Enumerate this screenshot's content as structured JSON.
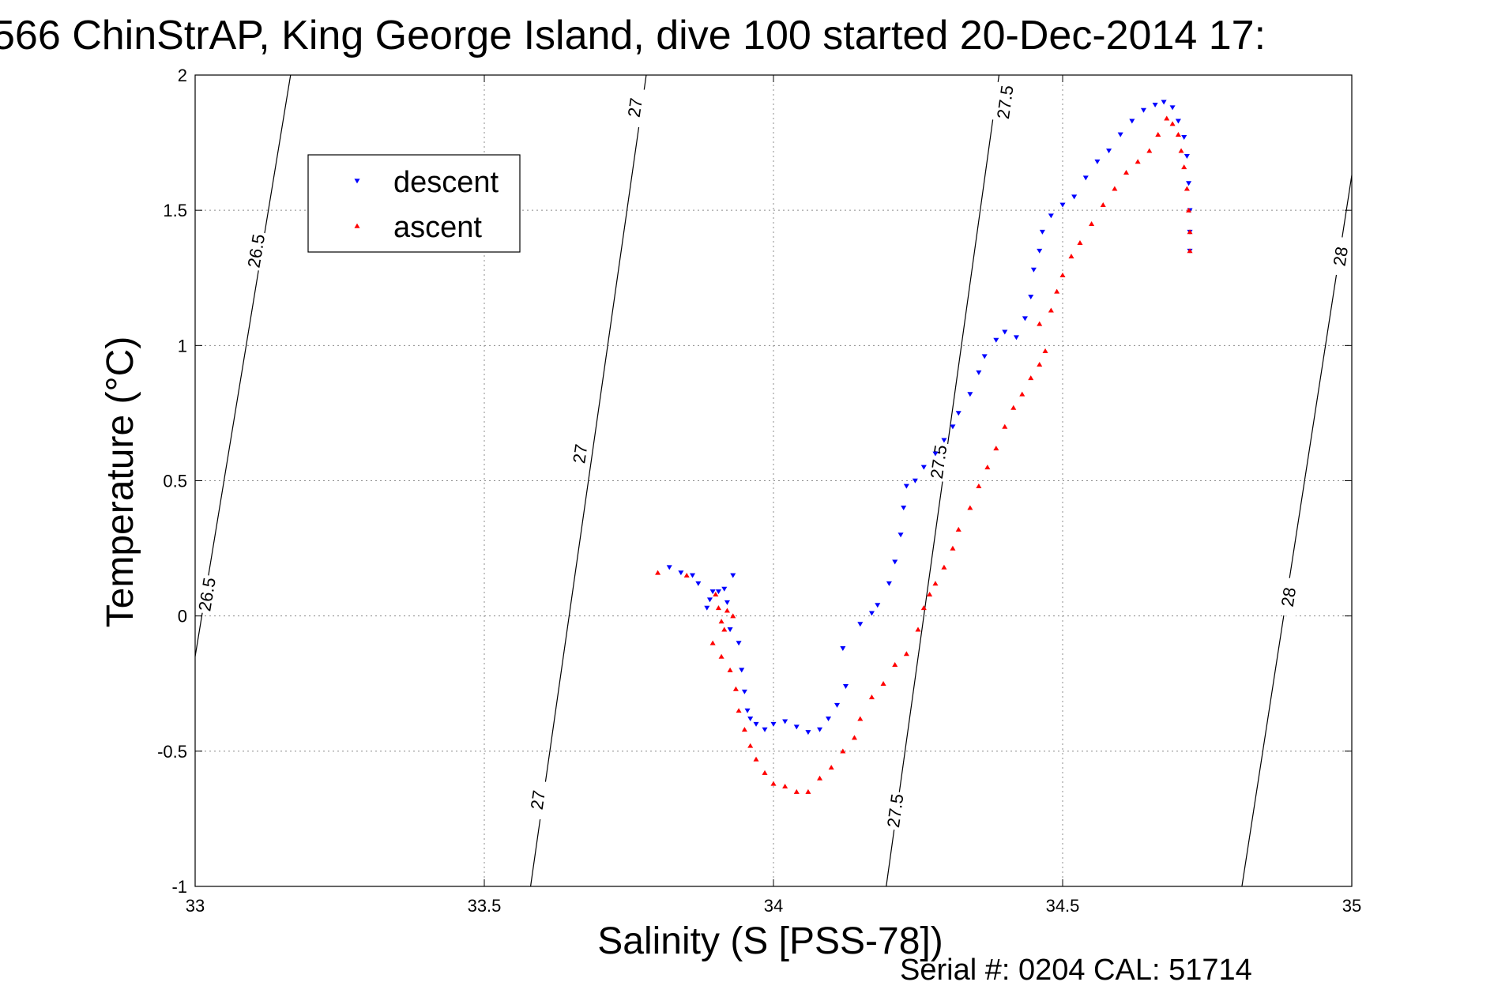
{
  "chart_data": {
    "type": "scatter",
    "title": "566 ChinStrAP, King George Island, dive 100 started 20-Dec-2014 17:",
    "xlabel": "Salinity (S [PSS-78])",
    "ylabel": "Temperature (°C)",
    "xlim": [
      33,
      35
    ],
    "ylim": [
      -1,
      2
    ],
    "xticks": [
      "33",
      "33.5",
      "34",
      "34.5",
      "35"
    ],
    "yticks": [
      "-1",
      "-0.5",
      "0",
      "0.5",
      "1",
      "1.5",
      "2"
    ],
    "grid": true,
    "legend_position": "top-left",
    "series": [
      {
        "name": "descent",
        "color": "#0000ff",
        "marker": "triangle-down",
        "points": [
          [
            33.82,
            0.18
          ],
          [
            33.84,
            0.16
          ],
          [
            33.86,
            0.15
          ],
          [
            33.87,
            0.12
          ],
          [
            33.885,
            0.03
          ],
          [
            33.89,
            0.06
          ],
          [
            33.895,
            0.09
          ],
          [
            33.905,
            0.09
          ],
          [
            33.915,
            0.1
          ],
          [
            33.92,
            0.05
          ],
          [
            33.925,
            -0.05
          ],
          [
            33.93,
            0.15
          ],
          [
            33.94,
            -0.1
          ],
          [
            33.945,
            -0.2
          ],
          [
            33.95,
            -0.28
          ],
          [
            33.955,
            -0.35
          ],
          [
            33.96,
            -0.38
          ],
          [
            33.97,
            -0.4
          ],
          [
            33.985,
            -0.42
          ],
          [
            34.0,
            -0.4
          ],
          [
            34.02,
            -0.39
          ],
          [
            34.04,
            -0.41
          ],
          [
            34.06,
            -0.43
          ],
          [
            34.08,
            -0.42
          ],
          [
            34.095,
            -0.38
          ],
          [
            34.11,
            -0.33
          ],
          [
            34.125,
            -0.26
          ],
          [
            34.12,
            -0.12
          ],
          [
            34.15,
            -0.03
          ],
          [
            34.17,
            0.01
          ],
          [
            34.18,
            0.04
          ],
          [
            34.2,
            0.12
          ],
          [
            34.21,
            0.2
          ],
          [
            34.22,
            0.3
          ],
          [
            34.225,
            0.4
          ],
          [
            34.23,
            0.48
          ],
          [
            34.245,
            0.5
          ],
          [
            34.26,
            0.55
          ],
          [
            34.28,
            0.6
          ],
          [
            34.295,
            0.65
          ],
          [
            34.31,
            0.7
          ],
          [
            34.32,
            0.75
          ],
          [
            34.34,
            0.82
          ],
          [
            34.355,
            0.9
          ],
          [
            34.365,
            0.96
          ],
          [
            34.385,
            1.02
          ],
          [
            34.4,
            1.05
          ],
          [
            34.42,
            1.03
          ],
          [
            34.435,
            1.1
          ],
          [
            34.445,
            1.18
          ],
          [
            34.45,
            1.28
          ],
          [
            34.46,
            1.35
          ],
          [
            34.465,
            1.42
          ],
          [
            34.48,
            1.48
          ],
          [
            34.5,
            1.52
          ],
          [
            34.52,
            1.55
          ],
          [
            34.54,
            1.62
          ],
          [
            34.56,
            1.68
          ],
          [
            34.58,
            1.72
          ],
          [
            34.6,
            1.78
          ],
          [
            34.62,
            1.83
          ],
          [
            34.64,
            1.87
          ],
          [
            34.66,
            1.89
          ],
          [
            34.675,
            1.9
          ],
          [
            34.69,
            1.88
          ],
          [
            34.7,
            1.83
          ],
          [
            34.71,
            1.77
          ],
          [
            34.715,
            1.7
          ],
          [
            34.718,
            1.6
          ],
          [
            34.72,
            1.5
          ],
          [
            34.72,
            1.42
          ],
          [
            34.72,
            1.35
          ]
        ]
      },
      {
        "name": "ascent",
        "color": "#ff0000",
        "marker": "triangle-up",
        "points": [
          [
            33.8,
            0.16
          ],
          [
            33.85,
            0.15
          ],
          [
            33.9,
            0.08
          ],
          [
            33.905,
            0.03
          ],
          [
            33.91,
            -0.02
          ],
          [
            33.915,
            -0.05
          ],
          [
            33.92,
            0.02
          ],
          [
            33.93,
            0.0
          ],
          [
            33.895,
            -0.1
          ],
          [
            33.91,
            -0.15
          ],
          [
            33.925,
            -0.2
          ],
          [
            33.935,
            -0.27
          ],
          [
            33.94,
            -0.35
          ],
          [
            33.95,
            -0.42
          ],
          [
            33.96,
            -0.48
          ],
          [
            33.97,
            -0.53
          ],
          [
            33.985,
            -0.58
          ],
          [
            34.0,
            -0.62
          ],
          [
            34.02,
            -0.63
          ],
          [
            34.04,
            -0.65
          ],
          [
            34.06,
            -0.65
          ],
          [
            34.08,
            -0.6
          ],
          [
            34.1,
            -0.56
          ],
          [
            34.12,
            -0.5
          ],
          [
            34.14,
            -0.45
          ],
          [
            34.15,
            -0.38
          ],
          [
            34.17,
            -0.3
          ],
          [
            34.19,
            -0.25
          ],
          [
            34.21,
            -0.18
          ],
          [
            34.23,
            -0.14
          ],
          [
            34.25,
            -0.05
          ],
          [
            34.26,
            0.03
          ],
          [
            34.27,
            0.08
          ],
          [
            34.28,
            0.12
          ],
          [
            34.295,
            0.18
          ],
          [
            34.31,
            0.25
          ],
          [
            34.32,
            0.32
          ],
          [
            34.34,
            0.4
          ],
          [
            34.355,
            0.48
          ],
          [
            34.37,
            0.55
          ],
          [
            34.385,
            0.62
          ],
          [
            34.4,
            0.7
          ],
          [
            34.415,
            0.77
          ],
          [
            34.43,
            0.82
          ],
          [
            34.445,
            0.88
          ],
          [
            34.46,
            0.93
          ],
          [
            34.47,
            0.98
          ],
          [
            34.46,
            1.08
          ],
          [
            34.48,
            1.13
          ],
          [
            34.49,
            1.2
          ],
          [
            34.5,
            1.26
          ],
          [
            34.515,
            1.33
          ],
          [
            34.53,
            1.38
          ],
          [
            34.55,
            1.45
          ],
          [
            34.57,
            1.52
          ],
          [
            34.59,
            1.58
          ],
          [
            34.61,
            1.64
          ],
          [
            34.63,
            1.68
          ],
          [
            34.65,
            1.72
          ],
          [
            34.665,
            1.78
          ],
          [
            34.68,
            1.84
          ],
          [
            34.69,
            1.82
          ],
          [
            34.7,
            1.78
          ],
          [
            34.705,
            1.72
          ],
          [
            34.71,
            1.66
          ],
          [
            34.715,
            1.58
          ],
          [
            34.718,
            1.5
          ],
          [
            34.72,
            1.42
          ],
          [
            34.72,
            1.35
          ]
        ]
      }
    ],
    "density_contours": [
      {
        "label": "26.5",
        "points": [
          [
            33.0,
            -0.15
          ],
          [
            33.165,
            2.0
          ]
        ],
        "label_positions": [
          [
            33.105,
            1.35
          ],
          [
            33.02,
            0.08
          ]
        ]
      },
      {
        "label": "27",
        "points": [
          [
            33.58,
            -1.0
          ],
          [
            33.78,
            2.0
          ]
        ],
        "label_positions": [
          [
            33.76,
            1.88
          ],
          [
            33.665,
            0.6
          ],
          [
            33.592,
            -0.68
          ]
        ]
      },
      {
        "label": "27.5",
        "points": [
          [
            34.195,
            -1.0
          ],
          [
            34.39,
            2.0
          ]
        ],
        "label_positions": [
          [
            34.4,
            1.9
          ],
          [
            34.285,
            0.57
          ],
          [
            34.21,
            -0.72
          ]
        ]
      },
      {
        "label": "28",
        "points": [
          [
            34.81,
            -1.0
          ],
          [
            35.0,
            1.63
          ]
        ],
        "label_positions": [
          [
            34.98,
            1.33
          ],
          [
            34.89,
            0.07
          ]
        ]
      }
    ],
    "footer": "Serial #: 0204  CAL: 51714"
  }
}
